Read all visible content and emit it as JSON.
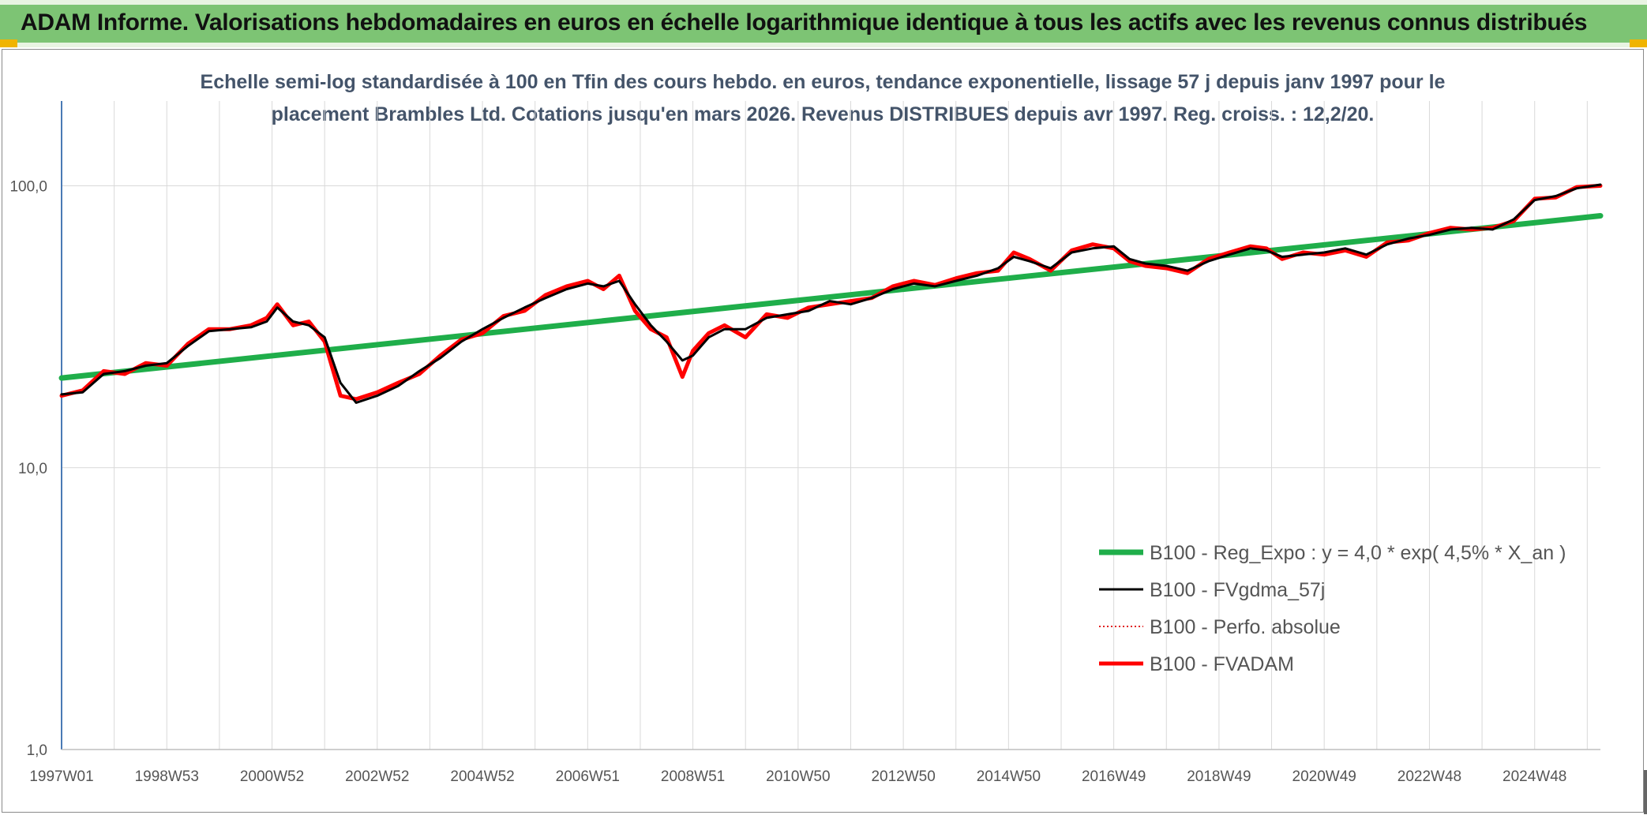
{
  "header": {
    "title": "ADAM Informe. Valorisations hebdomadaires en euros en échelle logarithmique identique à tous les actifs avec les revenus connus distribués"
  },
  "colors": {
    "banner": "#7dc474",
    "reg_expo": "#1fae4a",
    "fvgdma": "#000000",
    "perfo": "#e02020",
    "fvadam": "#ff0000",
    "axis": "#4a7ab5",
    "grid": "#d9d9d9"
  },
  "chart_data": {
    "type": "line",
    "subtitle_line1": "Echelle semi-log standardisée à 100 en Tfin des cours hebdo. en euros, tendance exponentielle, lissage 57 j depuis janv 1997 pour le",
    "subtitle_line2": "placement Brambles Ltd. Cotations jusqu'en mars 2026. Revenus DISTRIBUES depuis avr 1997. Reg. croiss. : 12,2/20.",
    "y_scale": "log",
    "ylim": [
      1,
      200
    ],
    "y_ticks": [
      "1,0",
      "10,0",
      "100,0"
    ],
    "y_tick_values": [
      1,
      10,
      100
    ],
    "xlim": [
      1997.0,
      2026.25
    ],
    "x_ticks": [
      "1997W01",
      "1998W53",
      "2000W52",
      "2002W52",
      "2004W52",
      "2006W51",
      "2008W51",
      "2010W50",
      "2012W50",
      "2014W50",
      "2016W49",
      "2018W49",
      "2020W49",
      "2022W48",
      "2024W48"
    ],
    "x_tick_values": [
      1997.0,
      1999.0,
      2001.0,
      2003.0,
      2005.0,
      2007.0,
      2009.0,
      2011.0,
      2013.0,
      2015.0,
      2017.0,
      2019.0,
      2021.0,
      2023.0,
      2025.0
    ],
    "grid": true,
    "legend_position": "bottom-right",
    "series": [
      {
        "name": "B100 - Reg_Expo : y = 4,0 * exp( 4,5% *  X_an )",
        "style": "thick",
        "x": [
          1997.0,
          2026.25
        ],
        "y": [
          20.8,
          78.3
        ]
      },
      {
        "name": "B100 - FVgdma_57j",
        "style": "thin",
        "x": [
          1997.0,
          1997.4,
          1997.8,
          1998.2,
          1998.6,
          1999.0,
          1999.4,
          1999.8,
          2000.2,
          2000.6,
          2000.9,
          2001.1,
          2001.4,
          2001.7,
          2002.0,
          2002.3,
          2002.6,
          2003.0,
          2003.4,
          2003.8,
          2004.2,
          2004.6,
          2005.0,
          2005.4,
          2005.8,
          2006.2,
          2006.6,
          2007.0,
          2007.3,
          2007.6,
          2007.9,
          2008.2,
          2008.5,
          2008.8,
          2009.0,
          2009.3,
          2009.6,
          2010.0,
          2010.4,
          2010.8,
          2011.2,
          2011.6,
          2012.0,
          2012.4,
          2012.8,
          2013.2,
          2013.6,
          2014.0,
          2014.4,
          2014.8,
          2015.1,
          2015.4,
          2015.8,
          2016.2,
          2016.6,
          2017.0,
          2017.3,
          2017.6,
          2018.0,
          2018.4,
          2018.8,
          2019.2,
          2019.6,
          2019.9,
          2020.2,
          2020.6,
          2021.0,
          2021.4,
          2021.8,
          2022.2,
          2022.6,
          2023.0,
          2023.4,
          2023.8,
          2024.2,
          2024.6,
          2025.0,
          2025.4,
          2025.8,
          2026.25
        ],
        "y": [
          18.2,
          18.5,
          21.5,
          22.0,
          23.0,
          23.5,
          27.0,
          30.5,
          31.0,
          31.5,
          33.0,
          37.0,
          33.0,
          32.0,
          29.0,
          20.0,
          17.0,
          18.0,
          19.5,
          22.0,
          24.5,
          28.0,
          31.0,
          34.0,
          37.0,
          40.0,
          43.0,
          45.0,
          44.0,
          46.0,
          38.0,
          32.0,
          28.0,
          24.0,
          25.0,
          29.0,
          31.0,
          31.0,
          34.0,
          35.0,
          36.0,
          39.0,
          38.0,
          40.0,
          43.0,
          45.0,
          44.0,
          46.0,
          48.0,
          51.0,
          56.0,
          54.0,
          51.0,
          58.0,
          60.0,
          61.0,
          55.0,
          53.0,
          52.0,
          50.0,
          54.0,
          57.0,
          60.0,
          59.0,
          56.0,
          57.0,
          58.0,
          60.0,
          57.0,
          62.0,
          65.0,
          67.0,
          70.0,
          71.0,
          70.0,
          76.0,
          89.0,
          92.0,
          98.0,
          101.0
        ]
      },
      {
        "name": "B100 - Perfo. absolue",
        "style": "dotted",
        "x": [],
        "y": []
      },
      {
        "name": "B100 - FVADAM",
        "style": "thick",
        "x": [
          1997.0,
          1997.4,
          1997.8,
          1998.2,
          1998.6,
          1999.0,
          1999.4,
          1999.8,
          2000.2,
          2000.6,
          2000.9,
          2001.1,
          2001.4,
          2001.7,
          2002.0,
          2002.3,
          2002.6,
          2003.0,
          2003.4,
          2003.8,
          2004.2,
          2004.6,
          2005.0,
          2005.4,
          2005.8,
          2006.2,
          2006.6,
          2007.0,
          2007.3,
          2007.6,
          2007.9,
          2008.2,
          2008.5,
          2008.8,
          2009.0,
          2009.3,
          2009.6,
          2010.0,
          2010.4,
          2010.8,
          2011.2,
          2011.6,
          2012.0,
          2012.4,
          2012.8,
          2013.2,
          2013.6,
          2014.0,
          2014.4,
          2014.8,
          2015.1,
          2015.4,
          2015.8,
          2016.2,
          2016.6,
          2017.0,
          2017.3,
          2017.6,
          2018.0,
          2018.4,
          2018.8,
          2019.2,
          2019.6,
          2019.9,
          2020.2,
          2020.6,
          2021.0,
          2021.4,
          2021.8,
          2022.2,
          2022.6,
          2023.0,
          2023.4,
          2023.8,
          2024.2,
          2024.6,
          2025.0,
          2025.4,
          2025.8,
          2026.25
        ],
        "y": [
          18.0,
          18.8,
          22.0,
          21.5,
          23.5,
          23.0,
          27.5,
          31.0,
          31.0,
          32.0,
          34.0,
          38.0,
          32.0,
          33.0,
          28.0,
          18.0,
          17.5,
          18.5,
          20.0,
          21.5,
          25.0,
          28.5,
          30.0,
          34.5,
          36.0,
          41.0,
          44.0,
          46.0,
          43.0,
          48.0,
          36.0,
          31.0,
          29.0,
          21.0,
          26.0,
          30.0,
          32.0,
          29.0,
          35.0,
          34.0,
          37.0,
          38.0,
          39.0,
          40.0,
          44.0,
          46.0,
          44.5,
          47.0,
          49.0,
          50.0,
          58.0,
          55.0,
          50.0,
          59.0,
          62.0,
          60.0,
          54.0,
          52.0,
          51.0,
          49.0,
          55.0,
          58.0,
          61.0,
          60.0,
          55.0,
          58.0,
          57.0,
          59.0,
          56.0,
          63.0,
          64.0,
          68.0,
          71.0,
          70.0,
          71.0,
          75.0,
          90.0,
          91.0,
          99.0,
          100.0
        ]
      }
    ]
  }
}
